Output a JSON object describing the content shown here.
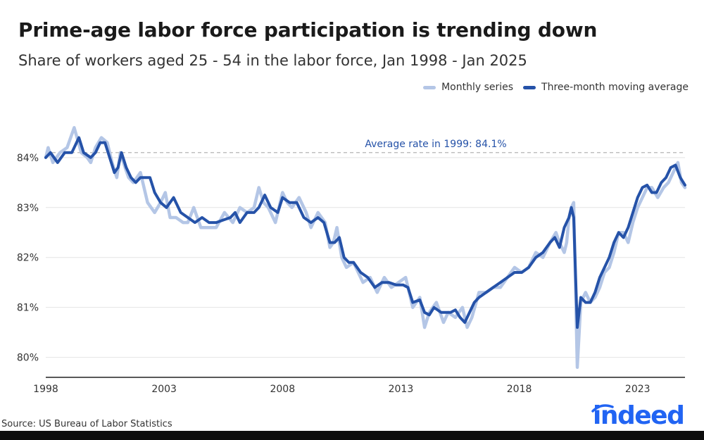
{
  "title": "Prime-age labor force participation is trending down",
  "subtitle": "Share of workers aged 25 - 54 in the labor force, Jan 1998 - Jan 2025",
  "source": "Source: US Bureau of Labor Statistics",
  "logo_text": "indeed",
  "colors": {
    "monthly": "#b4c6e6",
    "average": "#2552a8",
    "reference": "#2552a8",
    "logo": "#2164f3"
  },
  "chart_data": {
    "type": "line",
    "title": "Prime-age labor force participation is trending down",
    "subtitle": "Share of workers aged 25 - 54 in the labor force, Jan 1998 - Jan 2025",
    "xlabel": "",
    "ylabel": "",
    "xlim": [
      1998,
      2025
    ],
    "ylim": [
      79.6,
      84.9
    ],
    "grid": true,
    "legend_position": "top-right",
    "x_ticks": [
      1998,
      2003,
      2008,
      2013,
      2018,
      2023
    ],
    "x_tick_labels": [
      "1998",
      "2003",
      "2008",
      "2013",
      "2018",
      "2023"
    ],
    "y_ticks": [
      80,
      81,
      82,
      83,
      84
    ],
    "y_tick_labels": [
      "80%",
      "81%",
      "82%",
      "83%",
      "84%"
    ],
    "reference_line": {
      "value": 84.1,
      "label": "Average rate in 1999: 84.1%"
    },
    "series": [
      {
        "name": "Monthly series",
        "x": [
          1998.0,
          1998.1,
          1998.3,
          1998.6,
          1998.9,
          1999.2,
          1999.5,
          1999.75,
          1999.9,
          2000.1,
          2000.35,
          2000.6,
          2000.8,
          2001.0,
          2001.15,
          2001.35,
          2001.5,
          2001.7,
          2002.0,
          2002.3,
          2002.6,
          2002.85,
          2003.05,
          2003.25,
          2003.5,
          2003.8,
          2004.0,
          2004.25,
          2004.55,
          2004.85,
          2005.2,
          2005.55,
          2005.9,
          2006.2,
          2006.5,
          2006.8,
          2007.0,
          2007.2,
          2007.4,
          2007.7,
          2008.0,
          2008.2,
          2008.4,
          2008.7,
          2009.0,
          2009.2,
          2009.5,
          2009.8,
          2010.0,
          2010.15,
          2010.3,
          2010.5,
          2010.7,
          2011.0,
          2011.2,
          2011.4,
          2011.7,
          2012.0,
          2012.3,
          2012.6,
          2012.9,
          2013.2,
          2013.5,
          2013.8,
          2014.0,
          2014.2,
          2014.5,
          2014.8,
          2015.0,
          2015.3,
          2015.6,
          2015.8,
          2016.0,
          2016.3,
          2016.6,
          2016.9,
          2017.2,
          2017.5,
          2017.8,
          2018.1,
          2018.4,
          2018.7,
          2019.0,
          2019.3,
          2019.55,
          2019.7,
          2019.9,
          2020.0,
          2020.1,
          2020.2,
          2020.3,
          2020.45,
          2020.6,
          2020.8,
          2021.0,
          2021.2,
          2021.4,
          2021.6,
          2021.8,
          2022.0,
          2022.2,
          2022.4,
          2022.6,
          2022.8,
          2023.0,
          2023.2,
          2023.4,
          2023.6,
          2023.85,
          2024.1,
          2024.3,
          2024.5,
          2024.7,
          2024.85,
          2025.0
        ],
        "values": [
          84.0,
          84.2,
          83.9,
          84.1,
          84.2,
          84.6,
          84.1,
          84.0,
          83.9,
          84.2,
          84.4,
          84.3,
          83.9,
          83.6,
          84.1,
          83.8,
          83.6,
          83.5,
          83.7,
          83.1,
          82.9,
          83.1,
          83.3,
          82.8,
          82.8,
          82.7,
          82.7,
          83.0,
          82.6,
          82.6,
          82.6,
          82.9,
          82.7,
          83.0,
          82.9,
          83.0,
          83.4,
          83.1,
          83.0,
          82.7,
          83.3,
          83.1,
          83.0,
          83.2,
          82.9,
          82.6,
          82.9,
          82.7,
          82.2,
          82.3,
          82.6,
          82.0,
          81.8,
          81.9,
          81.7,
          81.5,
          81.6,
          81.3,
          81.6,
          81.4,
          81.5,
          81.6,
          81.0,
          81.2,
          80.6,
          80.9,
          81.1,
          80.7,
          80.9,
          80.8,
          81.0,
          80.6,
          80.8,
          81.3,
          81.3,
          81.4,
          81.4,
          81.6,
          81.8,
          81.7,
          81.8,
          82.1,
          82.0,
          82.3,
          82.5,
          82.3,
          82.1,
          82.3,
          82.8,
          83.0,
          83.1,
          79.8,
          81.1,
          81.3,
          81.1,
          81.2,
          81.4,
          81.7,
          81.8,
          82.1,
          82.5,
          82.5,
          82.3,
          82.7,
          83.0,
          83.2,
          83.4,
          83.4,
          83.2,
          83.4,
          83.5,
          83.7,
          83.9,
          83.5,
          83.4
        ]
      },
      {
        "name": "Three-month moving average",
        "x": [
          1998.0,
          1998.2,
          1998.5,
          1998.8,
          1999.1,
          1999.4,
          1999.6,
          1999.9,
          2000.1,
          2000.3,
          2000.5,
          2000.7,
          2000.9,
          2001.05,
          2001.2,
          2001.4,
          2001.6,
          2001.8,
          2002.0,
          2002.2,
          2002.4,
          2002.6,
          2002.85,
          2003.1,
          2003.4,
          2003.7,
          2004.0,
          2004.3,
          2004.6,
          2004.9,
          2005.2,
          2005.5,
          2005.8,
          2006.0,
          2006.2,
          2006.5,
          2006.8,
          2007.0,
          2007.25,
          2007.5,
          2007.8,
          2008.0,
          2008.3,
          2008.6,
          2008.9,
          2009.2,
          2009.5,
          2009.75,
          2010.0,
          2010.2,
          2010.4,
          2010.6,
          2010.8,
          2011.0,
          2011.3,
          2011.6,
          2011.9,
          2012.2,
          2012.5,
          2012.8,
          2013.1,
          2013.3,
          2013.5,
          2013.8,
          2014.0,
          2014.2,
          2014.4,
          2014.7,
          2014.9,
          2015.1,
          2015.3,
          2015.5,
          2015.7,
          2015.9,
          2016.1,
          2016.3,
          2016.6,
          2016.9,
          2017.2,
          2017.5,
          2017.8,
          2018.1,
          2018.4,
          2018.7,
          2019.0,
          2019.3,
          2019.5,
          2019.7,
          2019.9,
          2020.1,
          2020.2,
          2020.3,
          2020.45,
          2020.6,
          2020.8,
          2021.0,
          2021.2,
          2021.4,
          2021.6,
          2021.8,
          2022.0,
          2022.2,
          2022.4,
          2022.6,
          2022.8,
          2023.0,
          2023.2,
          2023.4,
          2023.6,
          2023.8,
          2024.0,
          2024.2,
          2024.4,
          2024.6,
          2024.8,
          2025.0
        ],
        "values": [
          84.0,
          84.1,
          83.9,
          84.1,
          84.1,
          84.4,
          84.1,
          84.0,
          84.1,
          84.3,
          84.3,
          84.0,
          83.7,
          83.8,
          84.1,
          83.8,
          83.6,
          83.5,
          83.6,
          83.6,
          83.6,
          83.3,
          83.1,
          83.0,
          83.2,
          82.9,
          82.8,
          82.7,
          82.8,
          82.7,
          82.7,
          82.75,
          82.8,
          82.9,
          82.7,
          82.9,
          82.9,
          83.0,
          83.25,
          83.0,
          82.9,
          83.2,
          83.1,
          83.1,
          82.8,
          82.7,
          82.8,
          82.7,
          82.3,
          82.3,
          82.4,
          82.0,
          81.9,
          81.9,
          81.7,
          81.6,
          81.4,
          81.5,
          81.5,
          81.45,
          81.45,
          81.4,
          81.1,
          81.15,
          80.9,
          80.85,
          81.0,
          80.9,
          80.9,
          80.9,
          80.95,
          80.8,
          80.7,
          80.9,
          81.1,
          81.2,
          81.3,
          81.4,
          81.5,
          81.6,
          81.7,
          81.7,
          81.8,
          82.0,
          82.1,
          82.3,
          82.4,
          82.2,
          82.6,
          82.8,
          83.0,
          82.8,
          80.6,
          81.2,
          81.1,
          81.1,
          81.3,
          81.6,
          81.8,
          82.0,
          82.3,
          82.5,
          82.4,
          82.6,
          82.9,
          83.2,
          83.4,
          83.45,
          83.3,
          83.3,
          83.5,
          83.6,
          83.8,
          83.85,
          83.6,
          83.45
        ]
      }
    ]
  }
}
